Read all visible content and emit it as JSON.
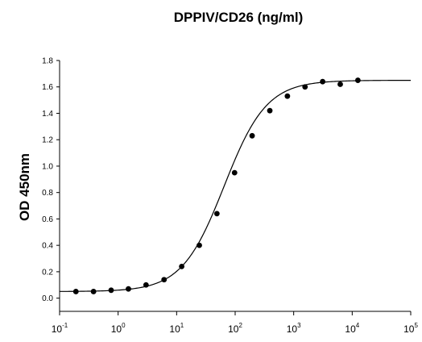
{
  "chart_data": {
    "type": "scatter",
    "title": "DPPIV/CD26 (ng/ml)",
    "ylabel": "OD 450nm",
    "xlabel": "",
    "xscale": "log",
    "xlim": [
      0.1,
      100000
    ],
    "ylim": [
      -0.1,
      1.8
    ],
    "xticks": [
      {
        "base": "10",
        "exp": "-1",
        "value": 0.1
      },
      {
        "base": "10",
        "exp": "0",
        "value": 1
      },
      {
        "base": "10",
        "exp": "1",
        "value": 10
      },
      {
        "base": "10",
        "exp": "2",
        "value": 100
      },
      {
        "base": "10",
        "exp": "3",
        "value": 1000
      },
      {
        "base": "10",
        "exp": "4",
        "value": 10000
      },
      {
        "base": "10",
        "exp": "5",
        "value": 100000
      }
    ],
    "yticks": [
      "0.0",
      "0.2",
      "0.4",
      "0.6",
      "0.8",
      "1.0",
      "1.2",
      "1.4",
      "1.6",
      "1.8"
    ],
    "grid": false,
    "series": [
      {
        "marker": "circle",
        "x": [
          0.19,
          0.38,
          0.76,
          1.5,
          3.0,
          6.1,
          12.2,
          24.4,
          48.8,
          97.7,
          195,
          391,
          781,
          1563,
          3125,
          6250,
          12500
        ],
        "y": [
          0.05,
          0.05,
          0.06,
          0.07,
          0.1,
          0.14,
          0.24,
          0.4,
          0.64,
          0.95,
          1.23,
          1.42,
          1.53,
          1.6,
          1.64,
          1.62,
          1.65
        ]
      }
    ],
    "fit": {
      "model": "4PL",
      "bottom": 0.05,
      "top": 1.65,
      "ec50": 65,
      "hill": 1.2
    }
  }
}
